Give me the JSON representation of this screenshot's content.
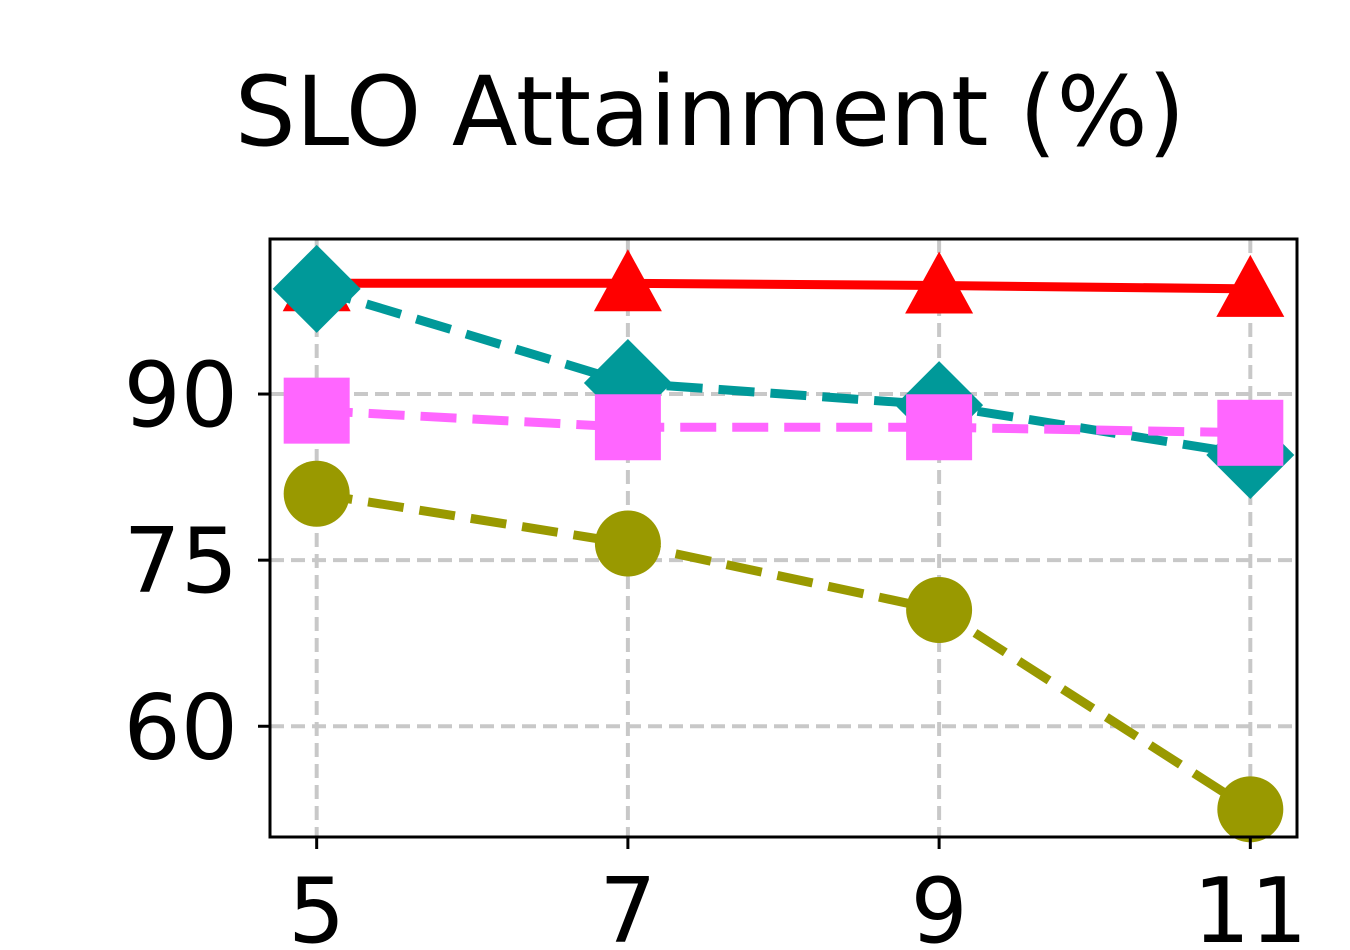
{
  "chart_data": {
    "type": "line",
    "title": "SLO Attainment (%)",
    "xlabel": "",
    "ylabel": "",
    "x": [
      5,
      7,
      9,
      11
    ],
    "x_ticks": [
      "5",
      "7",
      "9",
      "11"
    ],
    "y_ticks": [
      "60",
      "75",
      "90"
    ],
    "xlim": [
      4.7,
      11.3
    ],
    "ylim": [
      50,
      104
    ],
    "grid": true,
    "series": [
      {
        "values": [
          100.0,
          100.0,
          99.8,
          99.5
        ],
        "color": "#ff0000",
        "dash": "solid",
        "marker": "triangle"
      },
      {
        "values": [
          99.5,
          91.0,
          89.0,
          84.5
        ],
        "color": "#009999",
        "dash": "dashed",
        "marker": "diamond"
      },
      {
        "values": [
          88.5,
          87.0,
          87.0,
          86.5
        ],
        "color": "#ff66ff",
        "dash": "dashed",
        "marker": "square"
      },
      {
        "values": [
          81.0,
          76.5,
          70.5,
          52.5
        ],
        "color": "#999900",
        "dash": "dashed",
        "marker": "circle"
      }
    ]
  }
}
